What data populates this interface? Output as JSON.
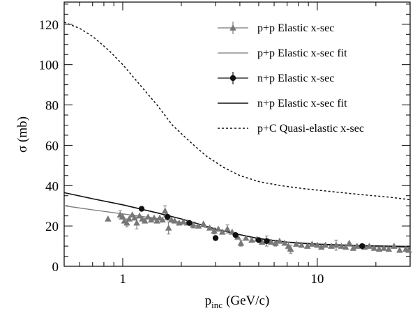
{
  "chart_data": {
    "type": "scatter",
    "xscale": "log",
    "xlim": [
      0.5,
      30
    ],
    "ylim": [
      0,
      131
    ],
    "ylabel": "σ (mb)",
    "xlabel_main": "p",
    "xlabel_sub": "inc",
    "xlabel_unit": "(GeV/c)",
    "x_tick_labels": [
      {
        "value": 1,
        "label": "1"
      },
      {
        "value": 10,
        "label": "10"
      }
    ],
    "y_tick_labels": [
      {
        "value": 0,
        "label": "0"
      },
      {
        "value": 20,
        "label": "20"
      },
      {
        "value": 40,
        "label": "40"
      },
      {
        "value": 60,
        "label": "60"
      },
      {
        "value": 80,
        "label": "80"
      },
      {
        "value": 100,
        "label": "100"
      },
      {
        "value": 120,
        "label": "120"
      }
    ],
    "legend_position": "top-right",
    "series": [
      {
        "name": "p+p Elastic x-sec",
        "kind": "points",
        "marker": "triangle",
        "color": "#777777",
        "points": [
          {
            "x": 0.84,
            "y": 23.5
          },
          {
            "x": 0.97,
            "y": 25.5,
            "err": 2
          },
          {
            "x": 1.0,
            "y": 24.5
          },
          {
            "x": 1.02,
            "y": 22.5
          },
          {
            "x": 1.05,
            "y": 21.5,
            "err": 2
          },
          {
            "x": 1.08,
            "y": 23.5
          },
          {
            "x": 1.12,
            "y": 25.5
          },
          {
            "x": 1.15,
            "y": 24
          },
          {
            "x": 1.18,
            "y": 21.5,
            "err": 3
          },
          {
            "x": 1.22,
            "y": 25
          },
          {
            "x": 1.26,
            "y": 23.5
          },
          {
            "x": 1.3,
            "y": 22.5
          },
          {
            "x": 1.35,
            "y": 24.5
          },
          {
            "x": 1.4,
            "y": 23
          },
          {
            "x": 1.45,
            "y": 24
          },
          {
            "x": 1.5,
            "y": 22.5
          },
          {
            "x": 1.55,
            "y": 24
          },
          {
            "x": 1.6,
            "y": 23
          },
          {
            "x": 1.65,
            "y": 27.5,
            "err": 2.5
          },
          {
            "x": 1.68,
            "y": 25.5
          },
          {
            "x": 1.72,
            "y": 19,
            "err": 3
          },
          {
            "x": 1.78,
            "y": 23
          },
          {
            "x": 1.85,
            "y": 22.5
          },
          {
            "x": 1.95,
            "y": 21.5
          },
          {
            "x": 2.05,
            "y": 22
          },
          {
            "x": 2.15,
            "y": 21.5
          },
          {
            "x": 2.3,
            "y": 20.5,
            "err": 1.5
          },
          {
            "x": 2.45,
            "y": 20
          },
          {
            "x": 2.6,
            "y": 21
          },
          {
            "x": 2.8,
            "y": 19
          },
          {
            "x": 2.95,
            "y": 17.5,
            "err": 1.5
          },
          {
            "x": 3.1,
            "y": 18.5
          },
          {
            "x": 3.25,
            "y": 17
          },
          {
            "x": 3.45,
            "y": 18.5,
            "err": 2
          },
          {
            "x": 3.65,
            "y": 17
          },
          {
            "x": 3.9,
            "y": 14.5
          },
          {
            "x": 4.05,
            "y": 11.5,
            "err": 1.5
          },
          {
            "x": 4.3,
            "y": 14
          },
          {
            "x": 4.6,
            "y": 13
          },
          {
            "x": 4.9,
            "y": 13.5
          },
          {
            "x": 5.2,
            "y": 12
          },
          {
            "x": 5.5,
            "y": 12.5,
            "err": 2.5
          },
          {
            "x": 5.8,
            "y": 12
          },
          {
            "x": 6.1,
            "y": 11.5,
            "err": 1.5
          },
          {
            "x": 6.4,
            "y": 12.5
          },
          {
            "x": 6.8,
            "y": 11.5
          },
          {
            "x": 7.1,
            "y": 10,
            "err": 2
          },
          {
            "x": 7.3,
            "y": 8.5,
            "err": 2
          },
          {
            "x": 7.8,
            "y": 11
          },
          {
            "x": 8.3,
            "y": 10.5
          },
          {
            "x": 8.9,
            "y": 10
          },
          {
            "x": 9.4,
            "y": 11
          },
          {
            "x": 10.0,
            "y": 10.5
          },
          {
            "x": 10.5,
            "y": 9.5
          },
          {
            "x": 11.0,
            "y": 10.5
          },
          {
            "x": 11.8,
            "y": 10
          },
          {
            "x": 12.5,
            "y": 10.5,
            "err": 2.5
          },
          {
            "x": 13.3,
            "y": 10
          },
          {
            "x": 14.0,
            "y": 9.5
          },
          {
            "x": 14.6,
            "y": 11.5
          },
          {
            "x": 15.3,
            "y": 9
          },
          {
            "x": 16.0,
            "y": 10
          },
          {
            "x": 17.5,
            "y": 9.5
          },
          {
            "x": 18.5,
            "y": 10
          },
          {
            "x": 19.6,
            "y": 9
          },
          {
            "x": 20.8,
            "y": 8.5
          },
          {
            "x": 22.0,
            "y": 9
          },
          {
            "x": 23.3,
            "y": 8.5
          },
          {
            "x": 24.8,
            "y": 10
          },
          {
            "x": 26.5,
            "y": 8
          },
          {
            "x": 28.5,
            "y": 8.5
          },
          {
            "x": 29.5,
            "y": 8
          }
        ]
      },
      {
        "name": "p+p Elastic x-sec fit",
        "kind": "line",
        "color": "#7a7a7a",
        "width": 1.3,
        "dash": "",
        "points": [
          {
            "x": 0.5,
            "y": 30
          },
          {
            "x": 0.7,
            "y": 28
          },
          {
            "x": 1.0,
            "y": 26
          },
          {
            "x": 1.5,
            "y": 23.7
          },
          {
            "x": 2.0,
            "y": 21.8
          },
          {
            "x": 3.0,
            "y": 18.2
          },
          {
            "x": 4.0,
            "y": 15.7
          },
          {
            "x": 5.0,
            "y": 13.5
          },
          {
            "x": 7.0,
            "y": 11.8
          },
          {
            "x": 10.0,
            "y": 10.7
          },
          {
            "x": 15.0,
            "y": 10.0
          },
          {
            "x": 20.0,
            "y": 9.6
          },
          {
            "x": 30.0,
            "y": 9.2
          }
        ]
      },
      {
        "name": "n+p Elastic x-sec",
        "kind": "points",
        "marker": "circle",
        "color": "#111111",
        "points": [
          {
            "x": 1.25,
            "y": 28.5
          },
          {
            "x": 1.7,
            "y": 24.5
          },
          {
            "x": 2.2,
            "y": 21.5
          },
          {
            "x": 3.0,
            "y": 14
          },
          {
            "x": 3.8,
            "y": 15.5
          },
          {
            "x": 5.0,
            "y": 13
          },
          {
            "x": 5.5,
            "y": 12.5
          },
          {
            "x": 17.0,
            "y": 10
          }
        ]
      },
      {
        "name": "n+p Elastic x-sec fit",
        "kind": "line",
        "color": "#111111",
        "width": 1.6,
        "dash": "",
        "points": [
          {
            "x": 0.5,
            "y": 36.5
          },
          {
            "x": 0.7,
            "y": 33.5
          },
          {
            "x": 1.0,
            "y": 30.5
          },
          {
            "x": 1.5,
            "y": 26.5
          },
          {
            "x": 2.0,
            "y": 23.5
          },
          {
            "x": 3.0,
            "y": 18.5
          },
          {
            "x": 4.0,
            "y": 15.7
          },
          {
            "x": 5.0,
            "y": 13.8
          },
          {
            "x": 7.0,
            "y": 12
          },
          {
            "x": 10.0,
            "y": 11
          },
          {
            "x": 15.0,
            "y": 10.4
          },
          {
            "x": 20.0,
            "y": 10.1
          },
          {
            "x": 30.0,
            "y": 9.8
          }
        ]
      },
      {
        "name": "p+C Quasi-elastic x-sec",
        "kind": "line",
        "color": "#111111",
        "width": 1.5,
        "dash": "3,3",
        "points": [
          {
            "x": 0.5,
            "y": 121
          },
          {
            "x": 0.6,
            "y": 118
          },
          {
            "x": 0.7,
            "y": 114
          },
          {
            "x": 0.85,
            "y": 107
          },
          {
            "x": 1.0,
            "y": 100
          },
          {
            "x": 1.2,
            "y": 91
          },
          {
            "x": 1.5,
            "y": 80
          },
          {
            "x": 1.8,
            "y": 70
          },
          {
            "x": 2.2,
            "y": 62
          },
          {
            "x": 2.7,
            "y": 54.5
          },
          {
            "x": 3.3,
            "y": 49
          },
          {
            "x": 4.0,
            "y": 45
          },
          {
            "x": 5.0,
            "y": 42
          },
          {
            "x": 6.5,
            "y": 40
          },
          {
            "x": 8.5,
            "y": 38.5
          },
          {
            "x": 12.0,
            "y": 37
          },
          {
            "x": 17.0,
            "y": 35.5
          },
          {
            "x": 24.0,
            "y": 34.2
          },
          {
            "x": 30.0,
            "y": 33
          }
        ]
      }
    ]
  }
}
